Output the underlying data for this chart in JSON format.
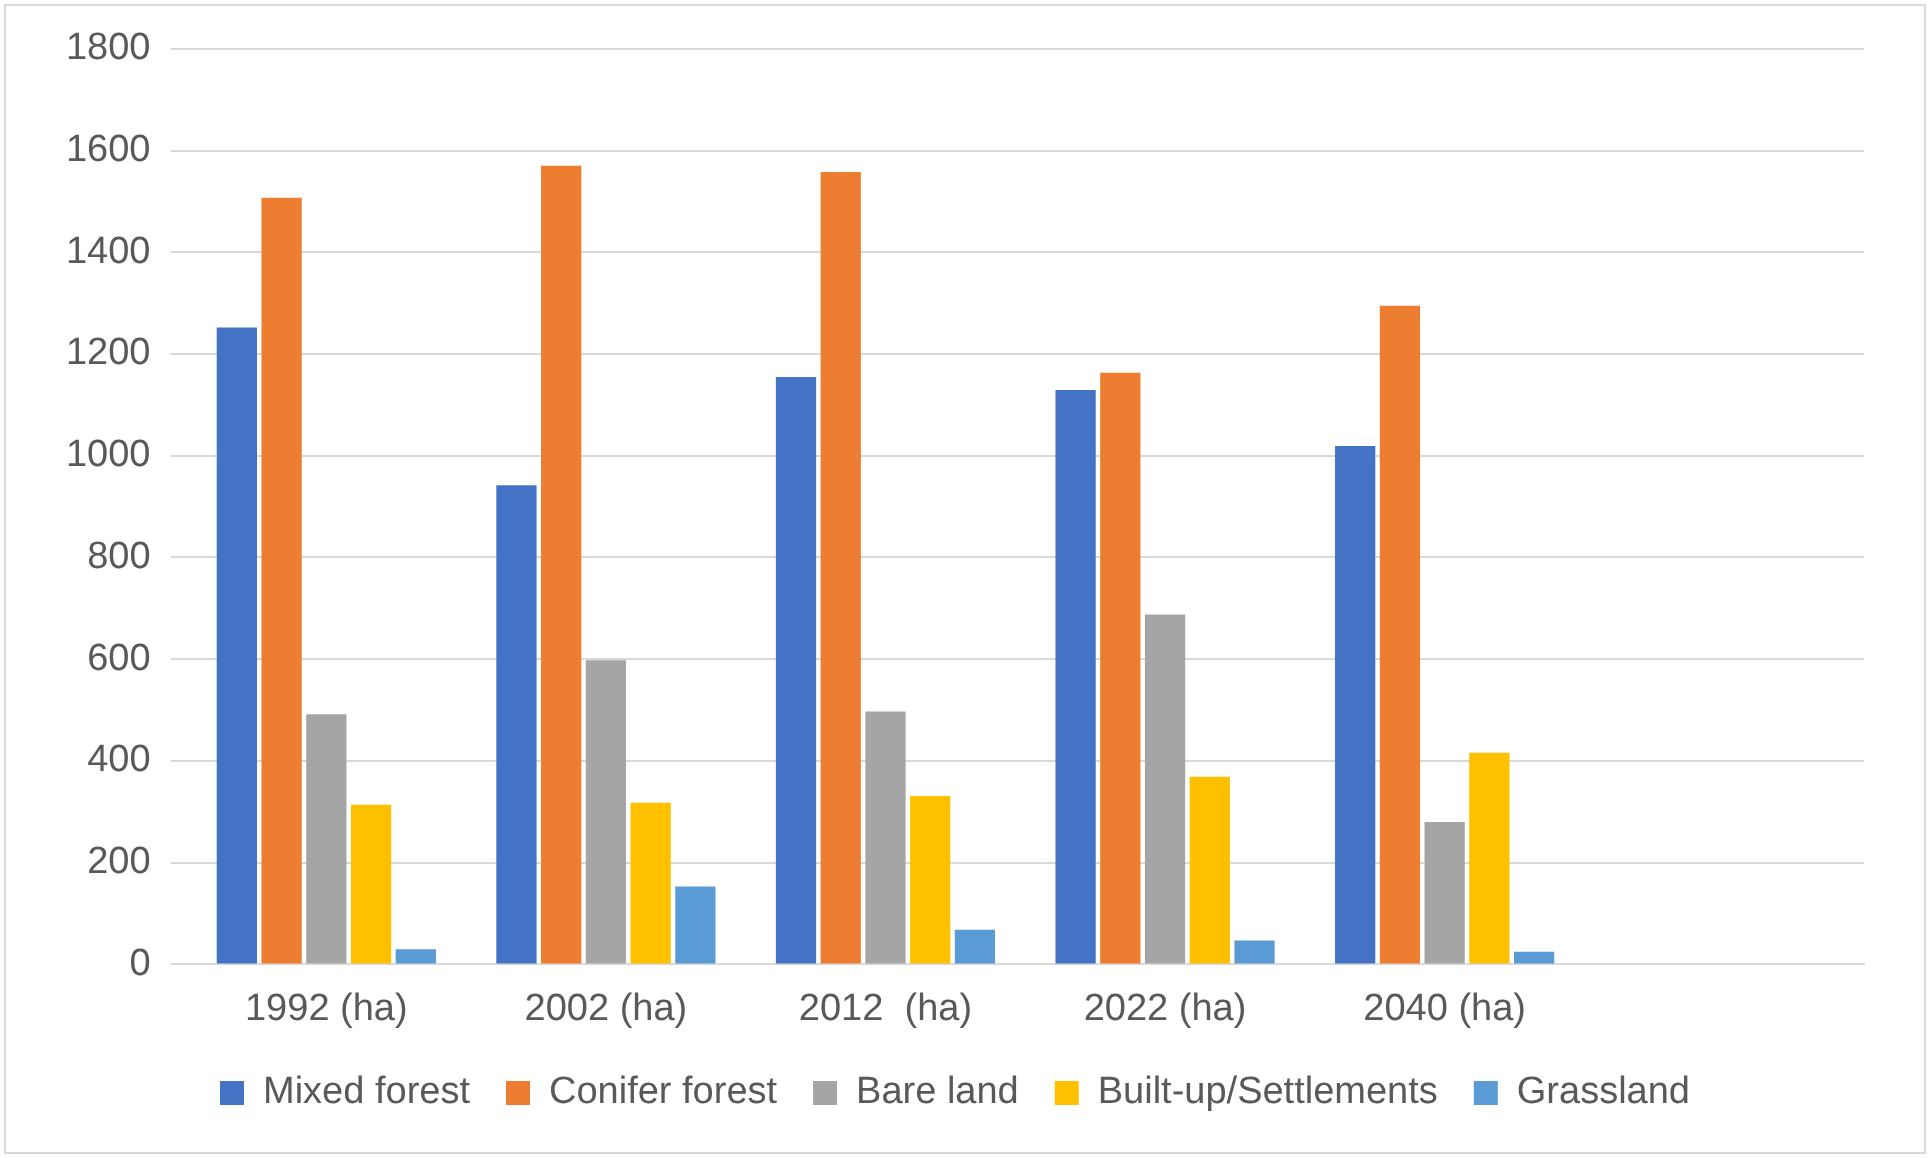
{
  "chart_data": {
    "type": "bar",
    "categories": [
      "1992 (ha)",
      "2002 (ha)",
      "2012  (ha)",
      "2022 (ha)",
      "2040 (ha)",
      null
    ],
    "series": [
      {
        "name": "Mixed forest",
        "color": "#4472c4",
        "values": [
          1252,
          942,
          1155,
          1129,
          1019,
          null
        ]
      },
      {
        "name": "Conifer forest",
        "color": "#ed7d31",
        "values": [
          1507,
          1570,
          1558,
          1163,
          1295,
          null
        ]
      },
      {
        "name": "Bare land",
        "color": "#a5a5a5",
        "values": [
          492,
          598,
          497,
          688,
          280,
          null
        ]
      },
      {
        "name": "Built-up/Settlements",
        "color": "#ffc000",
        "values": [
          314,
          318,
          331,
          369,
          416,
          null
        ]
      },
      {
        "name": "Grassland",
        "color": "#5b9bd5",
        "values": [
          30,
          153,
          68,
          47,
          25,
          null
        ]
      }
    ],
    "ylim": [
      0,
      1800
    ],
    "yticks": [
      0,
      200,
      400,
      600,
      800,
      1000,
      1200,
      1400,
      1600,
      1800
    ],
    "grid": "y",
    "legend": "bottom"
  }
}
